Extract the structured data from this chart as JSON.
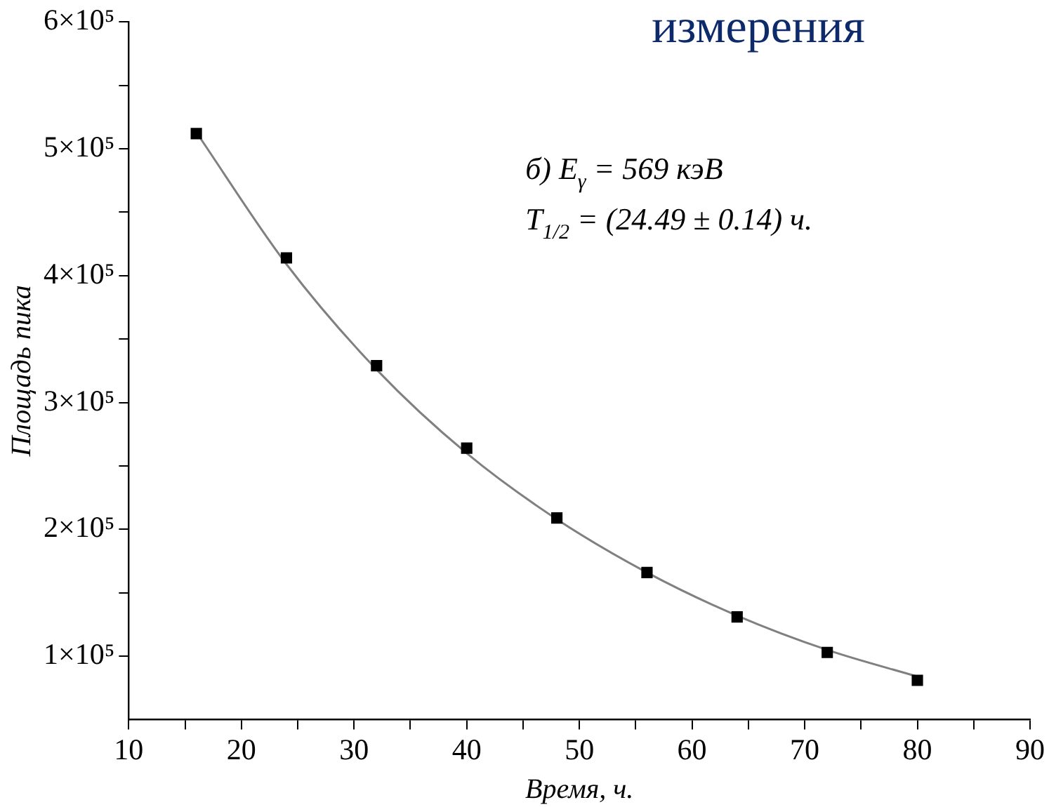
{
  "chart_data": {
    "type": "scatter",
    "title": "измерения",
    "xlabel": "Время, ч.",
    "ylabel": "Площадь пика",
    "annotations": [
      "б) E$_{γ}$ = 569 кэВ",
      "T$_{1/2}$ = (24.49 ± 0.14) ч."
    ],
    "xlim": [
      10,
      90
    ],
    "xticks": [
      10,
      {
        "value": 15,
        "label": null
      },
      20,
      {
        "value": 25,
        "label": null
      },
      30,
      {
        "value": 35,
        "label": null
      },
      40,
      {
        "value": 45,
        "label": null
      },
      50,
      {
        "value": 55,
        "label": null
      },
      60,
      {
        "value": 65,
        "label": null
      },
      70,
      {
        "value": 75,
        "label": null
      },
      80,
      {
        "value": 85,
        "label": null
      },
      90
    ],
    "ylim": [
      50000,
      600000
    ],
    "yticks": [
      {
        "value": 100000,
        "label": "1×10⁵"
      },
      {
        "value": 150000,
        "label": null
      },
      {
        "value": 200000,
        "label": "2×10⁵"
      },
      {
        "value": 250000,
        "label": null
      },
      {
        "value": 300000,
        "label": "3×10⁵"
      },
      {
        "value": 350000,
        "label": null
      },
      {
        "value": 400000,
        "label": "4×10⁵"
      },
      {
        "value": 450000,
        "label": null
      },
      {
        "value": 500000,
        "label": "5×10⁵"
      },
      {
        "value": 550000,
        "label": null
      },
      {
        "value": 600000,
        "label": "6×10⁵"
      }
    ],
    "grid": false,
    "series": [
      {
        "marker": "square",
        "color": "#000000",
        "x": [
          16,
          24,
          32,
          40,
          48,
          56,
          64,
          72,
          80
        ],
        "values": [
          512000,
          414000,
          329000,
          264000,
          209000,
          166000,
          131000,
          103000,
          81000
        ]
      },
      {
        "type": "line",
        "color": "#808080",
        "line_style": "solid",
        "x": [
          16,
          24,
          32,
          40,
          48,
          56,
          64,
          72,
          80
        ],
        "values": [
          513000,
          409000,
          326000,
          260000,
          208000,
          166000,
          132000,
          105000,
          84000
        ]
      }
    ]
  }
}
